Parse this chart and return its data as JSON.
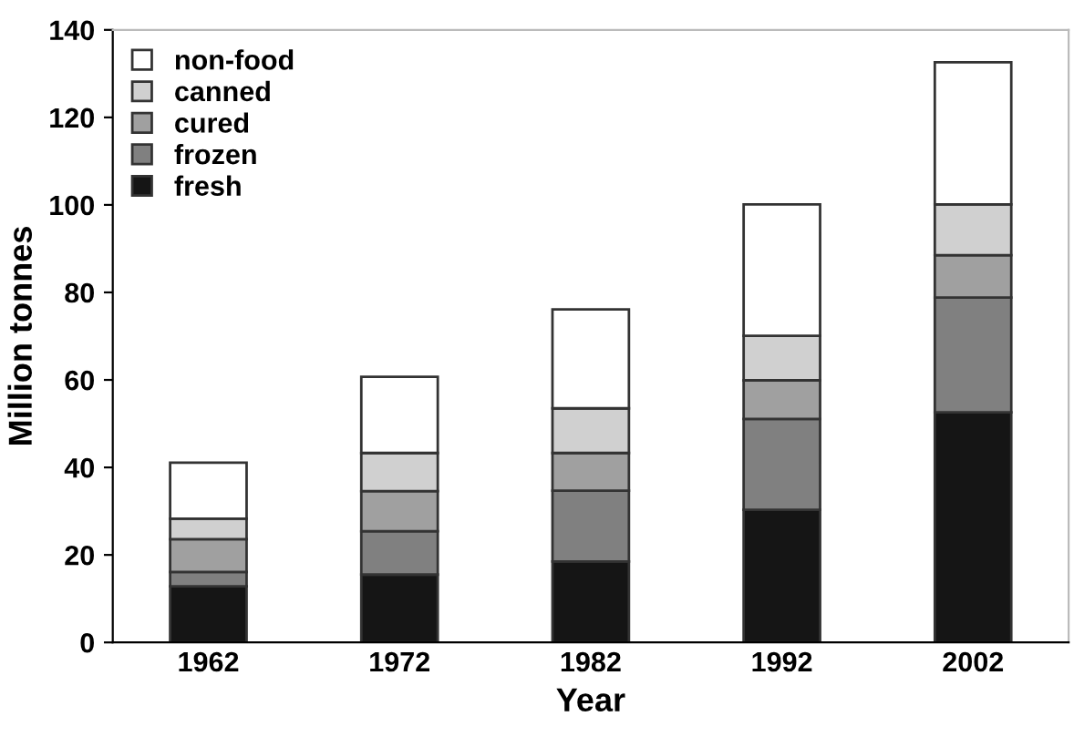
{
  "chart_data": {
    "type": "bar",
    "stacked": true,
    "xlabel": "Year",
    "ylabel": "Million tonnes",
    "categories": [
      "1962",
      "1972",
      "1982",
      "1992",
      "2002"
    ],
    "series": [
      {
        "name": "fresh",
        "color": "#151515",
        "values": [
          12.8,
          15.5,
          18.5,
          30.3,
          52.6
        ]
      },
      {
        "name": "frozen",
        "color": "#808080",
        "values": [
          3.3,
          9.9,
          16.2,
          20.8,
          26.2
        ]
      },
      {
        "name": "cured",
        "color": "#a0a0a0",
        "values": [
          7.5,
          9.2,
          8.6,
          8.8,
          9.7
        ]
      },
      {
        "name": "canned",
        "color": "#d0d0d0",
        "values": [
          4.7,
          8.7,
          10.2,
          10.2,
          11.6
        ]
      },
      {
        "name": "non-food",
        "color": "#ffffff",
        "values": [
          12.8,
          17.4,
          22.6,
          30.0,
          32.5
        ]
      }
    ],
    "ylim": [
      0,
      140
    ],
    "yticks": [
      0,
      20,
      40,
      60,
      80,
      100,
      120,
      140
    ],
    "grid": false,
    "legend": "top left"
  }
}
